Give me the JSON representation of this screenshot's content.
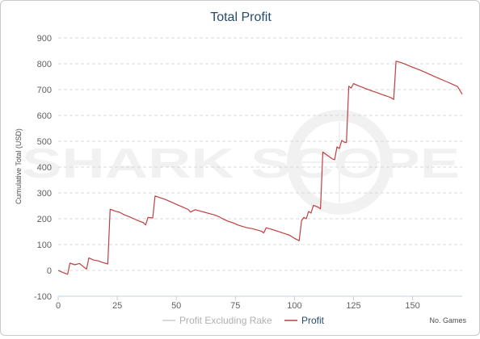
{
  "chart_data": {
    "type": "line",
    "title": "Total Profit",
    "xlabel": "No. Games",
    "ylabel": "Cumulative Total (USD)",
    "xlim": [
      0,
      171
    ],
    "ylim": [
      -100,
      900
    ],
    "x_ticks": [
      0,
      25,
      50,
      75,
      100,
      125,
      150
    ],
    "y_ticks": [
      -100,
      0,
      100,
      200,
      300,
      400,
      500,
      600,
      700,
      800,
      900
    ],
    "grid": "horizontal dashed",
    "legend_position": "bottom-center",
    "watermark": "SHARK SCOPE",
    "series": [
      {
        "name": "Profit Excluding Rake",
        "color": "#cccccc",
        "values": []
      },
      {
        "name": "Profit",
        "color": "#bf4040",
        "points": [
          [
            0,
            0
          ],
          [
            2,
            -8
          ],
          [
            4,
            -15
          ],
          [
            5,
            28
          ],
          [
            7,
            22
          ],
          [
            9,
            27
          ],
          [
            11,
            12
          ],
          [
            12,
            5
          ],
          [
            13,
            48
          ],
          [
            15,
            40
          ],
          [
            17,
            37
          ],
          [
            19,
            30
          ],
          [
            21,
            25
          ],
          [
            22,
            237
          ],
          [
            24,
            230
          ],
          [
            26,
            225
          ],
          [
            28,
            215
          ],
          [
            30,
            208
          ],
          [
            32,
            200
          ],
          [
            34,
            192
          ],
          [
            36,
            185
          ],
          [
            37,
            176
          ],
          [
            38,
            205
          ],
          [
            40,
            203
          ],
          [
            41,
            288
          ],
          [
            43,
            282
          ],
          [
            45,
            276
          ],
          [
            47,
            268
          ],
          [
            49,
            260
          ],
          [
            51,
            252
          ],
          [
            53,
            244
          ],
          [
            55,
            236
          ],
          [
            56,
            226
          ],
          [
            58,
            235
          ],
          [
            60,
            230
          ],
          [
            62,
            225
          ],
          [
            64,
            220
          ],
          [
            66,
            215
          ],
          [
            68,
            208
          ],
          [
            70,
            198
          ],
          [
            72,
            190
          ],
          [
            74,
            184
          ],
          [
            76,
            176
          ],
          [
            78,
            170
          ],
          [
            80,
            165
          ],
          [
            82,
            162
          ],
          [
            84,
            157
          ],
          [
            86,
            152
          ],
          [
            87,
            145
          ],
          [
            88,
            165
          ],
          [
            90,
            160
          ],
          [
            92,
            154
          ],
          [
            94,
            148
          ],
          [
            96,
            142
          ],
          [
            98,
            136
          ],
          [
            100,
            124
          ],
          [
            102,
            115
          ],
          [
            103,
            193
          ],
          [
            104,
            205
          ],
          [
            105,
            200
          ],
          [
            106,
            228
          ],
          [
            107,
            222
          ],
          [
            108,
            252
          ],
          [
            110,
            245
          ],
          [
            111,
            238
          ],
          [
            112,
            458
          ],
          [
            114,
            445
          ],
          [
            116,
            432
          ],
          [
            117,
            428
          ],
          [
            118,
            478
          ],
          [
            119,
            472
          ],
          [
            120,
            503
          ],
          [
            121,
            497
          ],
          [
            122,
            495
          ],
          [
            123,
            713
          ],
          [
            124,
            706
          ],
          [
            125,
            723
          ],
          [
            127,
            715
          ],
          [
            129,
            708
          ],
          [
            131,
            701
          ],
          [
            133,
            694
          ],
          [
            135,
            688
          ],
          [
            137,
            681
          ],
          [
            139,
            675
          ],
          [
            141,
            668
          ],
          [
            142,
            662
          ],
          [
            143,
            810
          ],
          [
            145,
            805
          ],
          [
            147,
            798
          ],
          [
            149,
            790
          ],
          [
            151,
            783
          ],
          [
            153,
            776
          ],
          [
            155,
            768
          ],
          [
            157,
            760
          ],
          [
            159,
            752
          ],
          [
            161,
            744
          ],
          [
            163,
            736
          ],
          [
            165,
            728
          ],
          [
            167,
            720
          ],
          [
            169,
            712
          ],
          [
            171,
            682
          ]
        ]
      }
    ]
  }
}
